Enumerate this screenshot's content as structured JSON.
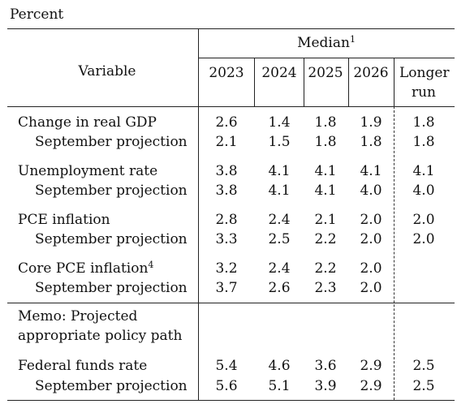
{
  "unit_label": "Percent",
  "header": {
    "variable": "Variable",
    "median": "Median",
    "median_note": "1",
    "years": [
      "2023",
      "2024",
      "2025",
      "2026"
    ],
    "longer_run_line1": "Longer",
    "longer_run_line2": "run"
  },
  "rows": [
    {
      "label": "Change in real GDP",
      "note": "",
      "values": [
        "2.6",
        "1.4",
        "1.8",
        "1.9",
        "1.8"
      ]
    },
    {
      "label": "September projection",
      "note": "",
      "values": [
        "2.1",
        "1.5",
        "1.8",
        "1.8",
        "1.8"
      ]
    },
    {
      "label": "Unemployment rate",
      "note": "",
      "values": [
        "3.8",
        "4.1",
        "4.1",
        "4.1",
        "4.1"
      ]
    },
    {
      "label": "September projection",
      "note": "",
      "values": [
        "3.8",
        "4.1",
        "4.1",
        "4.0",
        "4.0"
      ]
    },
    {
      "label": "PCE inflation",
      "note": "",
      "values": [
        "2.8",
        "2.4",
        "2.1",
        "2.0",
        "2.0"
      ]
    },
    {
      "label": "September projection",
      "note": "",
      "values": [
        "3.3",
        "2.5",
        "2.2",
        "2.0",
        "2.0"
      ]
    },
    {
      "label": "Core PCE inflation",
      "note": "4",
      "values": [
        "3.2",
        "2.4",
        "2.2",
        "2.0",
        ""
      ]
    },
    {
      "label": "September projection",
      "note": "",
      "values": [
        "3.7",
        "2.6",
        "2.3",
        "2.0",
        ""
      ]
    }
  ],
  "memo": {
    "line1": "Memo: Projected",
    "line2": "appropriate policy path",
    "rows": [
      {
        "label": "Federal funds rate",
        "values": [
          "5.4",
          "4.6",
          "3.6",
          "2.9",
          "2.5"
        ]
      },
      {
        "label": "September projection",
        "values": [
          "5.6",
          "5.1",
          "3.9",
          "2.9",
          "2.5"
        ]
      }
    ]
  }
}
